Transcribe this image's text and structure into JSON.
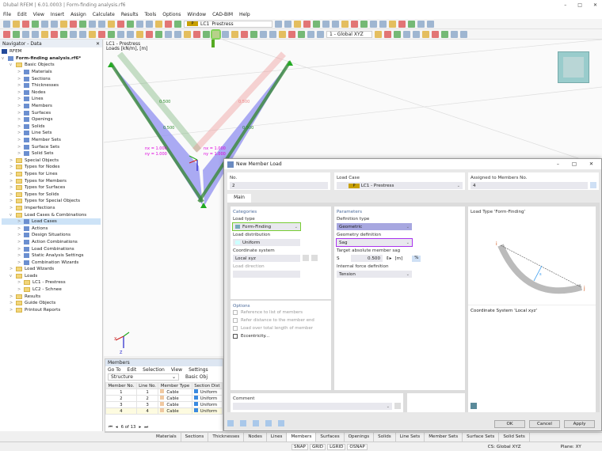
{
  "window": {
    "title": "Dlubal RFEM | 6.01.0003 | Form-finding analysis.rf6"
  },
  "menu": [
    "File",
    "Edit",
    "View",
    "Insert",
    "Assign",
    "Calculate",
    "Results",
    "Tools",
    "Options",
    "Window",
    "CAD-BIM",
    "Help"
  ],
  "toolbar": {
    "load_case_badge": "P",
    "load_case": "LC1",
    "load_case_name": "Prestress",
    "coord_system": "1 - Global XYZ"
  },
  "navigator": {
    "title": "Navigator - Data",
    "root": "RFEM",
    "file": "Form-finding analysis.rf6*",
    "items": [
      {
        "label": "Basic Objects",
        "level": 1,
        "type": "folder",
        "open": true
      },
      {
        "label": "Materials",
        "level": 2
      },
      {
        "label": "Sections",
        "level": 2
      },
      {
        "label": "Thicknesses",
        "level": 2
      },
      {
        "label": "Nodes",
        "level": 2
      },
      {
        "label": "Lines",
        "level": 2
      },
      {
        "label": "Members",
        "level": 2
      },
      {
        "label": "Surfaces",
        "level": 2
      },
      {
        "label": "Openings",
        "level": 2
      },
      {
        "label": "Solids",
        "level": 2
      },
      {
        "label": "Line Sets",
        "level": 2
      },
      {
        "label": "Member Sets",
        "level": 2
      },
      {
        "label": "Surface Sets",
        "level": 2
      },
      {
        "label": "Solid Sets",
        "level": 2
      },
      {
        "label": "Special Objects",
        "level": 1,
        "type": "folder"
      },
      {
        "label": "Types for Nodes",
        "level": 1,
        "type": "folder"
      },
      {
        "label": "Types for Lines",
        "level": 1,
        "type": "folder"
      },
      {
        "label": "Types for Members",
        "level": 1,
        "type": "folder"
      },
      {
        "label": "Types for Surfaces",
        "level": 1,
        "type": "folder"
      },
      {
        "label": "Types for Solids",
        "level": 1,
        "type": "folder"
      },
      {
        "label": "Types for Special Objects",
        "level": 1,
        "type": "folder"
      },
      {
        "label": "Imperfections",
        "level": 1,
        "type": "folder"
      },
      {
        "label": "Load Cases & Combinations",
        "level": 1,
        "type": "folder",
        "open": true
      },
      {
        "label": "Load Cases",
        "level": 2,
        "selected": true
      },
      {
        "label": "Actions",
        "level": 2
      },
      {
        "label": "Design Situations",
        "level": 2
      },
      {
        "label": "Action Combinations",
        "level": 2
      },
      {
        "label": "Load Combinations",
        "level": 2
      },
      {
        "label": "Static Analysis Settings",
        "level": 2
      },
      {
        "label": "Combination Wizards",
        "level": 2
      },
      {
        "label": "Load Wizards",
        "level": 1,
        "type": "folder"
      },
      {
        "label": "Loads",
        "level": 1,
        "type": "folder",
        "open": true
      },
      {
        "label": "LC1 - Prestress",
        "level": 2,
        "type": "folder"
      },
      {
        "label": "LC2 - Schnee",
        "level": 2,
        "type": "folder"
      },
      {
        "label": "Results",
        "level": 1,
        "type": "folder"
      },
      {
        "label": "Guide Objects",
        "level": 1,
        "type": "folder"
      },
      {
        "label": "Printout Reports",
        "level": 1,
        "type": "folder"
      }
    ]
  },
  "viewport": {
    "line1": "LC1 - Prestress",
    "line2": "Loads [kN/m], [m]",
    "labels": [
      "0.500",
      "0.500",
      "0.500",
      "0.500"
    ],
    "nx1": "nx = 1.000",
    "ny1": "ny = 1.000",
    "nx2": "nx = 1.000",
    "ny2": "ny = 1.000",
    "axis_x": "X",
    "axis_y": "Y",
    "axis_z": "Z"
  },
  "members": {
    "title": "Members",
    "menu": [
      "Go To",
      "Edit",
      "Selection",
      "View",
      "Settings"
    ],
    "filter": "Structure",
    "basic": "Basic Obj",
    "columns": [
      "Member No.",
      "Line No.",
      "Member Type",
      "Section Dist"
    ],
    "rows": [
      [
        "1",
        "1",
        "Cable",
        "Uniform"
      ],
      [
        "2",
        "2",
        "Cable",
        "Uniform"
      ],
      [
        "3",
        "3",
        "Cable",
        "Uniform"
      ],
      [
        "4",
        "4",
        "Cable",
        "Uniform"
      ]
    ],
    "pager": "6 of 13"
  },
  "bottom_tabs": [
    "Materials",
    "Sections",
    "Thicknesses",
    "Nodes",
    "Lines",
    "Members",
    "Surfaces",
    "Openings",
    "Solids",
    "Line Sets",
    "Member Sets",
    "Surface Sets",
    "Solid Sets"
  ],
  "status": {
    "toggles": [
      "SNAP",
      "GRID",
      "LGRID",
      "OSNAP"
    ],
    "cs": "CS: Global XYZ",
    "plane": "Plane: XY"
  },
  "dialog": {
    "title": "New Member Load",
    "no_label": "No.",
    "no": "2",
    "lc_label": "Load Case",
    "lc_badge": "P",
    "lc": "LC1 - Prestress",
    "assigned_label": "Assigned to Members No.",
    "assigned": "4",
    "tab": "Main",
    "categories": "Categories",
    "load_type_label": "Load type",
    "load_type": "Form-Finding",
    "load_dist_label": "Load distribution",
    "load_dist": "Uniform",
    "cs_label": "Coordinate system",
    "cs": "Local xyz",
    "dir_label": "Load direction",
    "parameters": "Parameters",
    "def_type_label": "Definition type",
    "def_type": "Geometric",
    "geom_label": "Geometry definition",
    "geom": "Sag",
    "sag_label": "Target absolute member sag",
    "sag_sym": "S",
    "sag": "0.500",
    "sag_unit": "[m]",
    "pct": "%",
    "force_label": "Internal force definition",
    "force": "Tension",
    "options": "Options",
    "opts": [
      {
        "label": "Reference to list of members",
        "enabled": false
      },
      {
        "label": "Refer distance to the member end",
        "enabled": false
      },
      {
        "label": "Load over total length of member",
        "enabled": false
      },
      {
        "label": "Eccentricity...",
        "enabled": true
      }
    ],
    "preview_title": "Load Type 'Form-Finding'",
    "preview_i": "i",
    "preview_j": "j",
    "preview_s": "s",
    "cs_title": "Coordinate System 'Local xyz'",
    "comment": "Comment",
    "ok": "OK",
    "cancel": "Cancel",
    "apply": "Apply"
  }
}
